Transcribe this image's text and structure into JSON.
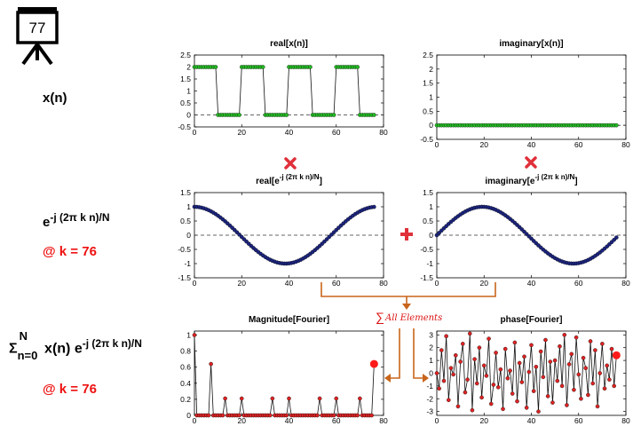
{
  "slide_number": "77",
  "labels": {
    "xn": "x(n)",
    "basis_main": "e",
    "basis_sup": "-j (2π k n)/N",
    "basis_k": "@ k = 76",
    "dft_sigma": "Σ",
    "dft_upper": "N",
    "dft_lower": "n=0",
    "dft_body": " x(n) e",
    "dft_sup": "-j (2π k n)/N",
    "dft_k": "@ k = 76"
  },
  "sum_label": "All Elements",
  "colors": {
    "green_marker": "#22bb22",
    "blue_marker": "#1a237e",
    "red_marker": "#dd2222",
    "highlight_red": "#ff1a1a",
    "arrow_orange": "#c8651b",
    "cross_red": "#e0303a"
  },
  "icons": {
    "multiply": "x-cross-icon",
    "plus": "plus-icon",
    "slide": "presentation-board-icon"
  },
  "chart_data": [
    {
      "id": "real_x",
      "type": "line",
      "title": "real[x(n)]",
      "xlim": [
        0,
        80
      ],
      "ylim": [
        -0.5,
        2.5
      ],
      "xticks": [
        "0",
        "20",
        "40",
        "60",
        "80"
      ],
      "yticks": [
        "-0.5",
        "0",
        "0.5",
        "1",
        "1.5",
        "2",
        "2.5"
      ],
      "n": 77,
      "signal": "square wave: 2 for n mod 20 < 10, else 0",
      "series": [
        {
          "color": "#22bb22"
        }
      ],
      "zero_line": true
    },
    {
      "id": "imag_x",
      "type": "line",
      "title": "imaginary[x(n)]",
      "xlim": [
        0,
        80
      ],
      "ylim": [
        -0.5,
        2.5
      ],
      "xticks": [
        "0",
        "20",
        "40",
        "60",
        "80"
      ],
      "yticks": [
        "-0.5",
        "0",
        "0.5",
        "1",
        "1.5",
        "2",
        "2.5"
      ],
      "n": 77,
      "signal": "zero",
      "series": [
        {
          "color": "#22bb22"
        }
      ],
      "zero_line": true
    },
    {
      "id": "real_e",
      "type": "line",
      "title_main": "real[e",
      "title_sup": "-j (2π k n)/N",
      "title_end": "]",
      "xlim": [
        0,
        80
      ],
      "ylim": [
        -1.5,
        1.5
      ],
      "xticks": [
        "0",
        "20",
        "40",
        "60",
        "80"
      ],
      "yticks": [
        "-1.5",
        "-1",
        "-0.5",
        "0",
        "0.5",
        "1",
        "1.5"
      ],
      "n": 77,
      "signal": "cos(2π·76·n/77)",
      "series": [
        {
          "color": "#1a237e"
        }
      ],
      "zero_line": true
    },
    {
      "id": "imag_e",
      "type": "line",
      "title_main": "imaginary[e",
      "title_sup": "-j (2π k n)/N",
      "title_end": "]",
      "xlim": [
        0,
        80
      ],
      "ylim": [
        -1.5,
        1.5
      ],
      "xticks": [
        "0",
        "20",
        "40",
        "60",
        "80"
      ],
      "yticks": [
        "-1.5",
        "-1",
        "-0.5",
        "0",
        "0.5",
        "1",
        "1.5"
      ],
      "n": 77,
      "signal": "-sin(2π·76·n/77)",
      "series": [
        {
          "color": "#1a237e"
        }
      ],
      "zero_line": true
    },
    {
      "id": "mag",
      "type": "line",
      "title": "Magnitude[Fourier]",
      "xlim": [
        0,
        80
      ],
      "ylim": [
        0,
        1.05
      ],
      "xticks": [
        "0",
        "20",
        "40",
        "60",
        "80"
      ],
      "yticks": [
        "0",
        "0.2",
        "0.4",
        "0.6",
        "0.8",
        "1"
      ],
      "series": [
        {
          "color": "#dd2222",
          "values": [
            1.0,
            0,
            0,
            0,
            0,
            0,
            0,
            0.64,
            0,
            0,
            0,
            0,
            0,
            0.21,
            0,
            0,
            0,
            0,
            0,
            0,
            0.21,
            0,
            0,
            0,
            0,
            0,
            0,
            0,
            0,
            0,
            0,
            0,
            0,
            0.21,
            0,
            0,
            0,
            0,
            0,
            0,
            0.21,
            0,
            0,
            0,
            0,
            0,
            0,
            0,
            0,
            0,
            0,
            0,
            0,
            0.21,
            0,
            0,
            0,
            0,
            0,
            0,
            0.21,
            0,
            0,
            0,
            0,
            0,
            0,
            0,
            0,
            0,
            0.21,
            0,
            0,
            0,
            0,
            0,
            0.64
          ]
        }
      ],
      "highlight": {
        "x": 76,
        "y": 0.64
      }
    },
    {
      "id": "phase",
      "type": "line",
      "title": "phase[Fourier]",
      "xlim": [
        0,
        80
      ],
      "ylim": [
        -3.3,
        3.3
      ],
      "xticks": [
        "0",
        "20",
        "40",
        "60",
        "80"
      ],
      "yticks": [
        "-3",
        "-2",
        "-1",
        "0",
        "1",
        "2",
        "3"
      ],
      "series": [
        {
          "color": "#dd2222",
          "values": [
            0,
            -1.2,
            1.8,
            -0.6,
            2.9,
            -2.1,
            0.4,
            -0.1,
            1.4,
            -2.6,
            0.9,
            2.3,
            -1.5,
            -0.5,
            3.1,
            -2.9,
            1.1,
            -0.8,
            2.0,
            -1.9,
            0.6,
            -0.2,
            2.7,
            -2.4,
            -0.9,
            1.6,
            -1.1,
            0.3,
            -2.8,
            1.9,
            -0.4,
            0.2,
            -1.6,
            2.4,
            -2.2,
            0.8,
            -0.7,
            1.3,
            -2.7,
            0.1,
            2.2,
            -1.4,
            0.5,
            -3.0,
            1.7,
            -0.3,
            2.6,
            -1.8,
            0.9,
            -2.3,
            1.0,
            -0.6,
            2.1,
            -1.0,
            3.0,
            -2.5,
            0.7,
            1.5,
            -1.3,
            2.8,
            -0.1,
            -2.0,
            1.2,
            0.4,
            -1.7,
            2.5,
            -0.8,
            1.8,
            -2.6,
            0.0,
            2.3,
            -1.2,
            0.6,
            -0.5,
            1.9,
            -1.0,
            1.4
          ]
        }
      ],
      "highlight": {
        "x": 76,
        "y": 1.4
      }
    }
  ]
}
